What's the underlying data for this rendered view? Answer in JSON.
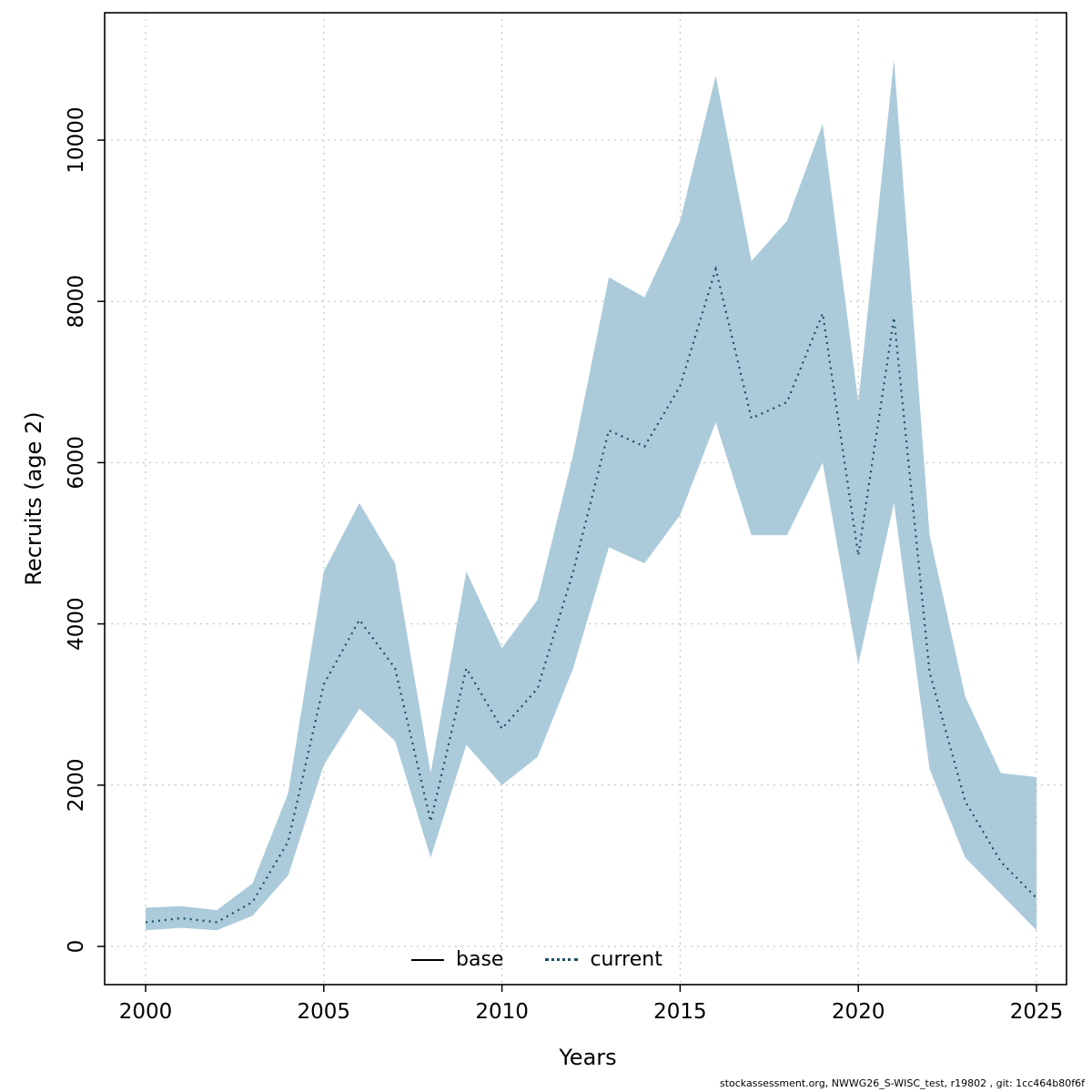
{
  "chart_data": {
    "type": "line",
    "title": "",
    "xlabel": "Years",
    "ylabel": "Recruits (age 2)",
    "xlim": [
      2000,
      2025
    ],
    "ylim": [
      0,
      11000
    ],
    "grid": true,
    "legend_position": "bottom-center",
    "xticks": [
      2000,
      2005,
      2010,
      2015,
      2020,
      2025
    ],
    "yticks": [
      0,
      2000,
      4000,
      6000,
      8000,
      10000
    ],
    "x": [
      2000,
      2001,
      2002,
      2003,
      2004,
      2005,
      2006,
      2007,
      2008,
      2009,
      2010,
      2011,
      2012,
      2013,
      2014,
      2015,
      2016,
      2017,
      2018,
      2019,
      2020,
      2021,
      2022,
      2023,
      2024,
      2025
    ],
    "series": [
      {
        "name": "current",
        "style": "dotted",
        "color": "#1a4d63",
        "values": [
          300,
          350,
          300,
          550,
          1300,
          3250,
          4050,
          3450,
          1550,
          3450,
          2700,
          3200,
          4650,
          6400,
          6200,
          6950,
          8400,
          6550,
          6750,
          7850,
          4850,
          7800,
          3400,
          1800,
          1050,
          600
        ]
      }
    ],
    "band": {
      "name": "confidence-interval",
      "color": "#abcbdb",
      "lower": [
        200,
        230,
        200,
        380,
        880,
        2250,
        2950,
        2550,
        1100,
        2500,
        2000,
        2350,
        3450,
        4950,
        4750,
        5350,
        6500,
        5100,
        5100,
        6000,
        3500,
        5500,
        2200,
        1100,
        650,
        200
      ],
      "upper": [
        480,
        500,
        450,
        780,
        1900,
        4650,
        5500,
        4750,
        2150,
        4650,
        3700,
        4300,
        6100,
        8300,
        8050,
        9000,
        10800,
        8500,
        9000,
        10200,
        6750,
        11000,
        5100,
        3100,
        2150,
        2100
      ]
    },
    "legend": [
      {
        "label": "base",
        "style": "solid",
        "color": "#000000"
      },
      {
        "label": "current",
        "style": "dotted",
        "color": "#1a4d63"
      }
    ],
    "colors": {
      "grid": "#b9b9b9",
      "plot_border": "#000000",
      "band": "#abcbdb",
      "current_line": "#1a4d63"
    }
  },
  "footer": {
    "text": "stockassessment.org, NWWG26_S-WISC_test, r19802 , git: 1cc464b80f6f"
  }
}
